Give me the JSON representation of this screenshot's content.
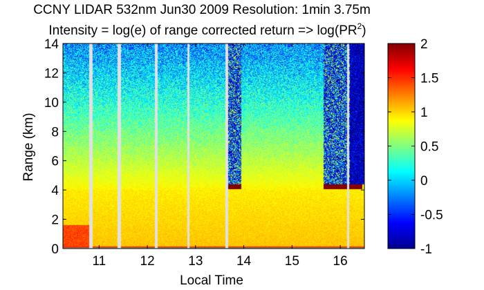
{
  "title_line1": "CCNY LIDAR 532nm Jun30 2009 Resolution: 1min 3.75m",
  "title_line2": "Intensity = log(e) of range corrected return => log(PR",
  "title_line2_sup": "2",
  "title_line2_end": ")",
  "chart_data": {
    "type": "heatmap",
    "title": "CCNY LIDAR 532nm Jun30 2009 Resolution: 1min 3.75m",
    "subtitle": "Intensity = log(e) of range corrected return => log(PR^2)",
    "xlabel": "Local Time",
    "ylabel": "Range (km)",
    "xlim": [
      10.25,
      16.5
    ],
    "ylim": [
      0,
      14
    ],
    "x_ticks": [
      11,
      12,
      13,
      14,
      15,
      16
    ],
    "y_ticks": [
      0,
      2,
      4,
      6,
      8,
      10,
      12,
      14
    ],
    "colorbar": {
      "colormap": "jet",
      "clim": [
        -1,
        2
      ],
      "ticks": [
        -1,
        -0.5,
        0,
        0.5,
        1,
        1.5,
        2
      ]
    },
    "data_gaps_local_time": [
      [
        10.8,
        10.86
      ],
      [
        11.38,
        11.46
      ],
      [
        12.16,
        12.22
      ],
      [
        12.83,
        12.88
      ],
      [
        13.62,
        13.68
      ],
      [
        16.14,
        16.19
      ]
    ],
    "layers": [
      {
        "name": "surface",
        "range_km": [
          0,
          0.3
        ],
        "value": 2.0
      },
      {
        "name": "boundary layer",
        "range_km": [
          0.3,
          4.0
        ],
        "value": 1.1
      },
      {
        "name": "cloud base",
        "local_time": [
          13.65,
          13.95
        ],
        "range_km": 4.2,
        "value": 2.0
      },
      {
        "name": "cloud base",
        "local_time": [
          15.65,
          16.4
        ],
        "range_km": 4.2,
        "value": 2.0
      }
    ],
    "grid": false
  }
}
